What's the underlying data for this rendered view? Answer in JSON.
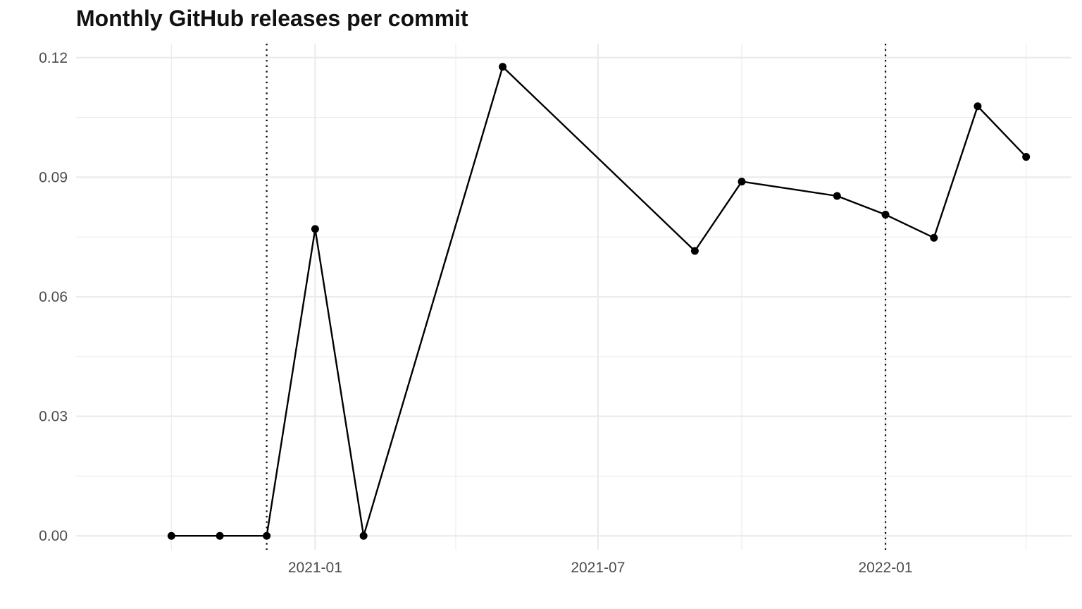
{
  "chart_data": {
    "type": "line",
    "title": "Monthly GitHub releases per commit",
    "xlabel": "",
    "ylabel": "",
    "x": [
      "2020-10-01",
      "2020-11-01",
      "2020-12-01",
      "2021-01-01",
      "2021-02-01",
      "2021-05-01",
      "2021-09-01",
      "2021-10-01",
      "2021-12-01",
      "2022-01-01",
      "2022-02-01",
      "2022-03-01",
      "2022-04-01"
    ],
    "series": [
      {
        "values": [
          0.0,
          0.0,
          0.0,
          0.077,
          0.0,
          0.1177,
          0.0715,
          0.0889,
          0.0853,
          0.0806,
          0.0748,
          0.1078,
          0.0951
        ]
      }
    ],
    "ylim": [
      -0.0035,
      0.1235
    ],
    "yticks": [
      0.0,
      0.03,
      0.06,
      0.09,
      0.12
    ],
    "ytick_labels": [
      "0.00",
      "0.03",
      "0.06",
      "0.09",
      "0.12"
    ],
    "xticks": [
      "2021-01-01",
      "2021-07-01",
      "2022-01-01"
    ],
    "xtick_labels": [
      "2021-01",
      "2021-07",
      "2022-01"
    ],
    "x_minor_ticks": [
      "2020-10-01",
      "2021-04-01",
      "2021-10-01",
      "2022-04-01"
    ],
    "xlim": [
      "2020-08-01",
      "2022-04-30"
    ],
    "vlines": [
      {
        "x": "2020-12-01",
        "style": "dotted"
      },
      {
        "x": "2022-01-01",
        "style": "dotted"
      }
    ],
    "grid": true,
    "legend": "none",
    "colors": {
      "line": "#000000",
      "point": "#000000",
      "grid": "#ebebeb",
      "vline": "#000000"
    }
  }
}
